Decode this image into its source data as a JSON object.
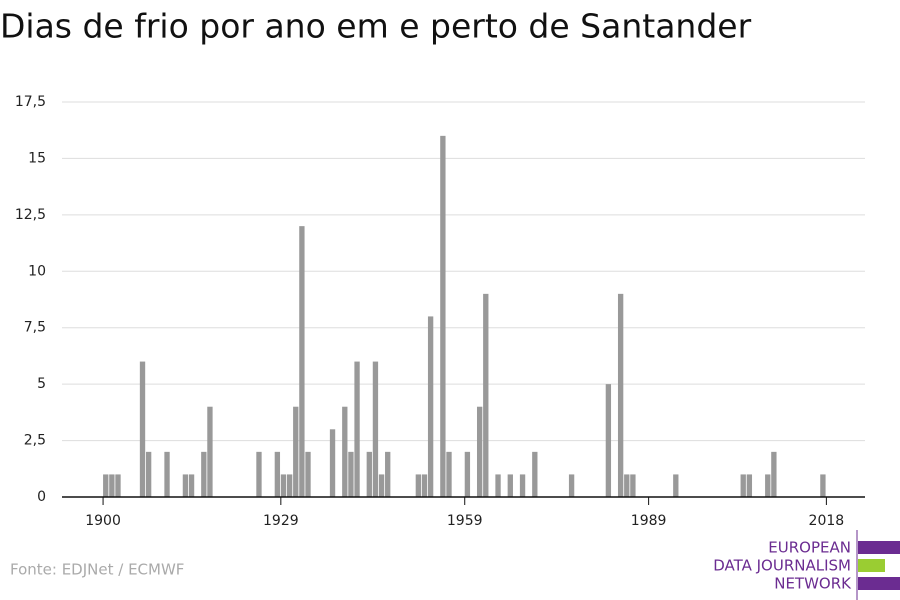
{
  "chart_data": {
    "type": "bar",
    "title": "Dias de frio por ano em e perto de Santander",
    "x": [
      1900,
      1901,
      1902,
      1906,
      1907,
      1910,
      1913,
      1914,
      1916,
      1917,
      1925,
      1928,
      1929,
      1930,
      1931,
      1932,
      1933,
      1937,
      1939,
      1940,
      1941,
      1943,
      1944,
      1945,
      1946,
      1951,
      1952,
      1953,
      1955,
      1956,
      1959,
      1961,
      1962,
      1964,
      1966,
      1968,
      1970,
      1976,
      1982,
      1984,
      1985,
      1986,
      1993,
      2004,
      2005,
      2008,
      2009,
      2017
    ],
    "values": [
      1,
      1,
      1,
      6,
      2,
      2,
      1,
      1,
      2,
      4,
      2,
      2,
      1,
      1,
      4,
      12,
      2,
      3,
      4,
      2,
      6,
      2,
      6,
      1,
      2,
      1,
      1,
      8,
      16,
      2,
      2,
      4,
      9,
      1,
      1,
      1,
      2,
      1,
      5,
      9,
      1,
      1,
      1,
      1,
      1,
      1,
      2,
      1
    ],
    "color": "#999999",
    "xlim": [
      1893.3,
      2024.3
    ],
    "xticks": [
      1900,
      1929,
      1959,
      1989,
      2018
    ],
    "ylim": [
      0,
      17.5
    ],
    "yticks": [
      0,
      {
        "value": 2.5,
        "label": "2,5"
      },
      5,
      {
        "value": 7.5,
        "label": "7,5"
      },
      10,
      {
        "value": 12.5,
        "label": "12,5"
      },
      15,
      {
        "value": 17.5,
        "label": "17,5"
      }
    ],
    "grid": true
  },
  "source": "Fonte: EDJNet / ECMWF",
  "logo": [
    "EUROPEAN",
    "DATA JOURNALISM",
    "NETWORK"
  ]
}
